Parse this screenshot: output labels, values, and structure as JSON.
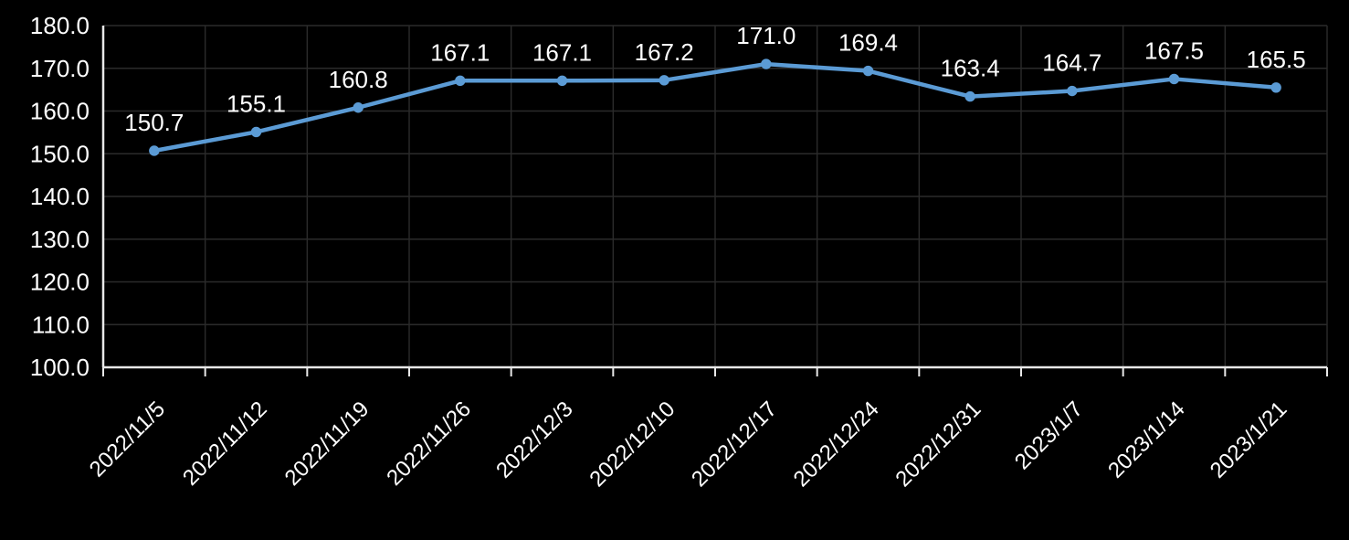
{
  "chart_data": {
    "type": "line",
    "categories": [
      "2022/11/5",
      "2022/11/12",
      "2022/11/19",
      "2022/11/26",
      "2022/12/3",
      "2022/12/10",
      "2022/12/17",
      "2022/12/24",
      "2022/12/31",
      "2023/1/7",
      "2023/1/14",
      "2023/1/21"
    ],
    "values": [
      150.7,
      155.1,
      160.8,
      167.1,
      167.1,
      167.2,
      171.0,
      169.4,
      163.4,
      164.7,
      167.5,
      165.5
    ],
    "data_labels": [
      "150.7",
      "155.1",
      "160.8",
      "167.1",
      "167.1",
      "167.2",
      "171.0",
      "169.4",
      "163.4",
      "164.7",
      "167.5",
      "165.5"
    ],
    "ytick_labels": [
      "180.0",
      "170.0",
      "160.0",
      "150.0",
      "140.0",
      "130.0",
      "120.0",
      "110.0",
      "100.0"
    ],
    "ylim": [
      100,
      180
    ],
    "ytick_step": 10,
    "xlabel": "",
    "ylabel": "",
    "grid": true,
    "legend": "none",
    "x_label_rotation_deg": -45
  },
  "colors": {
    "background": "#000000",
    "series_line": "#5B9BD5",
    "marker": "#5B9BD5",
    "gridline": "#2B2B2B",
    "axis_line": "#E8E8E8",
    "text": "#FFFFFF"
  }
}
